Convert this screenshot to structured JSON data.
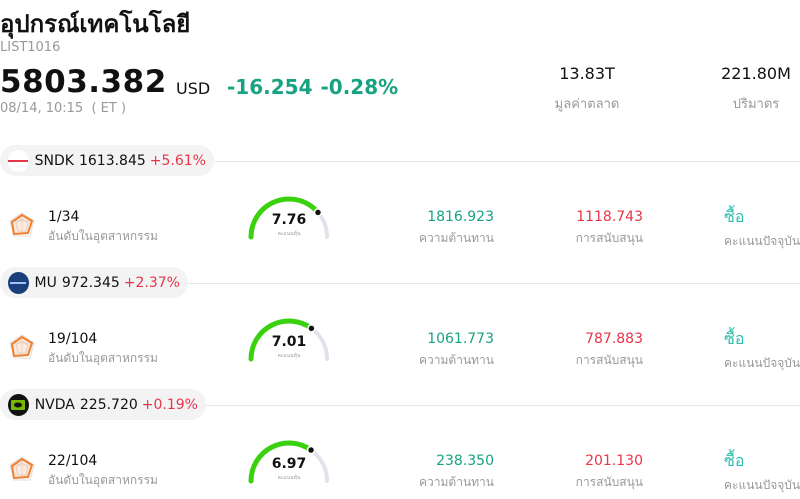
{
  "header": {
    "title": "อุปกรณ์เทคโนโลยี",
    "code": "LIST1016",
    "price": "5803.382",
    "currency": "USD",
    "change": "-16.254",
    "change_pct": "-0.28%",
    "time": "08/14, 10:15  ( ET )",
    "market_cap_value": "13.83T",
    "market_cap_label": "มูลค่าตลาด",
    "volume_value": "221.80M",
    "volume_label": "ปริมาตร"
  },
  "labels": {
    "rank": "อันดับในอุตสาหกรรม",
    "resistance": "ความต้านทาน",
    "support": "การสนับสนุน",
    "score_caption": "คะแนนหุ้น",
    "recommendation_caption": "คะแนนปัจจุบัน"
  },
  "colors": {
    "up": "#17a382",
    "down": "#e8354a",
    "gauge_fill": "#3ad10e",
    "gauge_track": "#e2e2ea",
    "recommend": "#2bbfb0"
  },
  "stocks": [
    {
      "ticker": "SNDK",
      "price": "1613.845",
      "pct": "+5.61%",
      "logo_color": "#ffffff",
      "logo_icon": "sandisk-logo",
      "rank": "1/34",
      "score": "7.76",
      "score_fraction": 0.776,
      "resistance": "1816.923",
      "support": "1118.743",
      "recommendation": "ซื้อ"
    },
    {
      "ticker": "MU",
      "price": "972.345",
      "pct": "+2.37%",
      "logo_color": "#1b3f7a",
      "logo_icon": "micron-logo",
      "rank": "19/104",
      "score": "7.01",
      "score_fraction": 0.701,
      "resistance": "1061.773",
      "support": "787.883",
      "recommendation": "ซื้อ"
    },
    {
      "ticker": "NVDA",
      "price": "225.720",
      "pct": "+0.19%",
      "logo_color": "#111111",
      "logo_icon": "nvidia-logo",
      "rank": "22/104",
      "score": "6.97",
      "score_fraction": 0.697,
      "resistance": "238.350",
      "support": "201.130",
      "recommendation": "ซื้อ"
    }
  ]
}
